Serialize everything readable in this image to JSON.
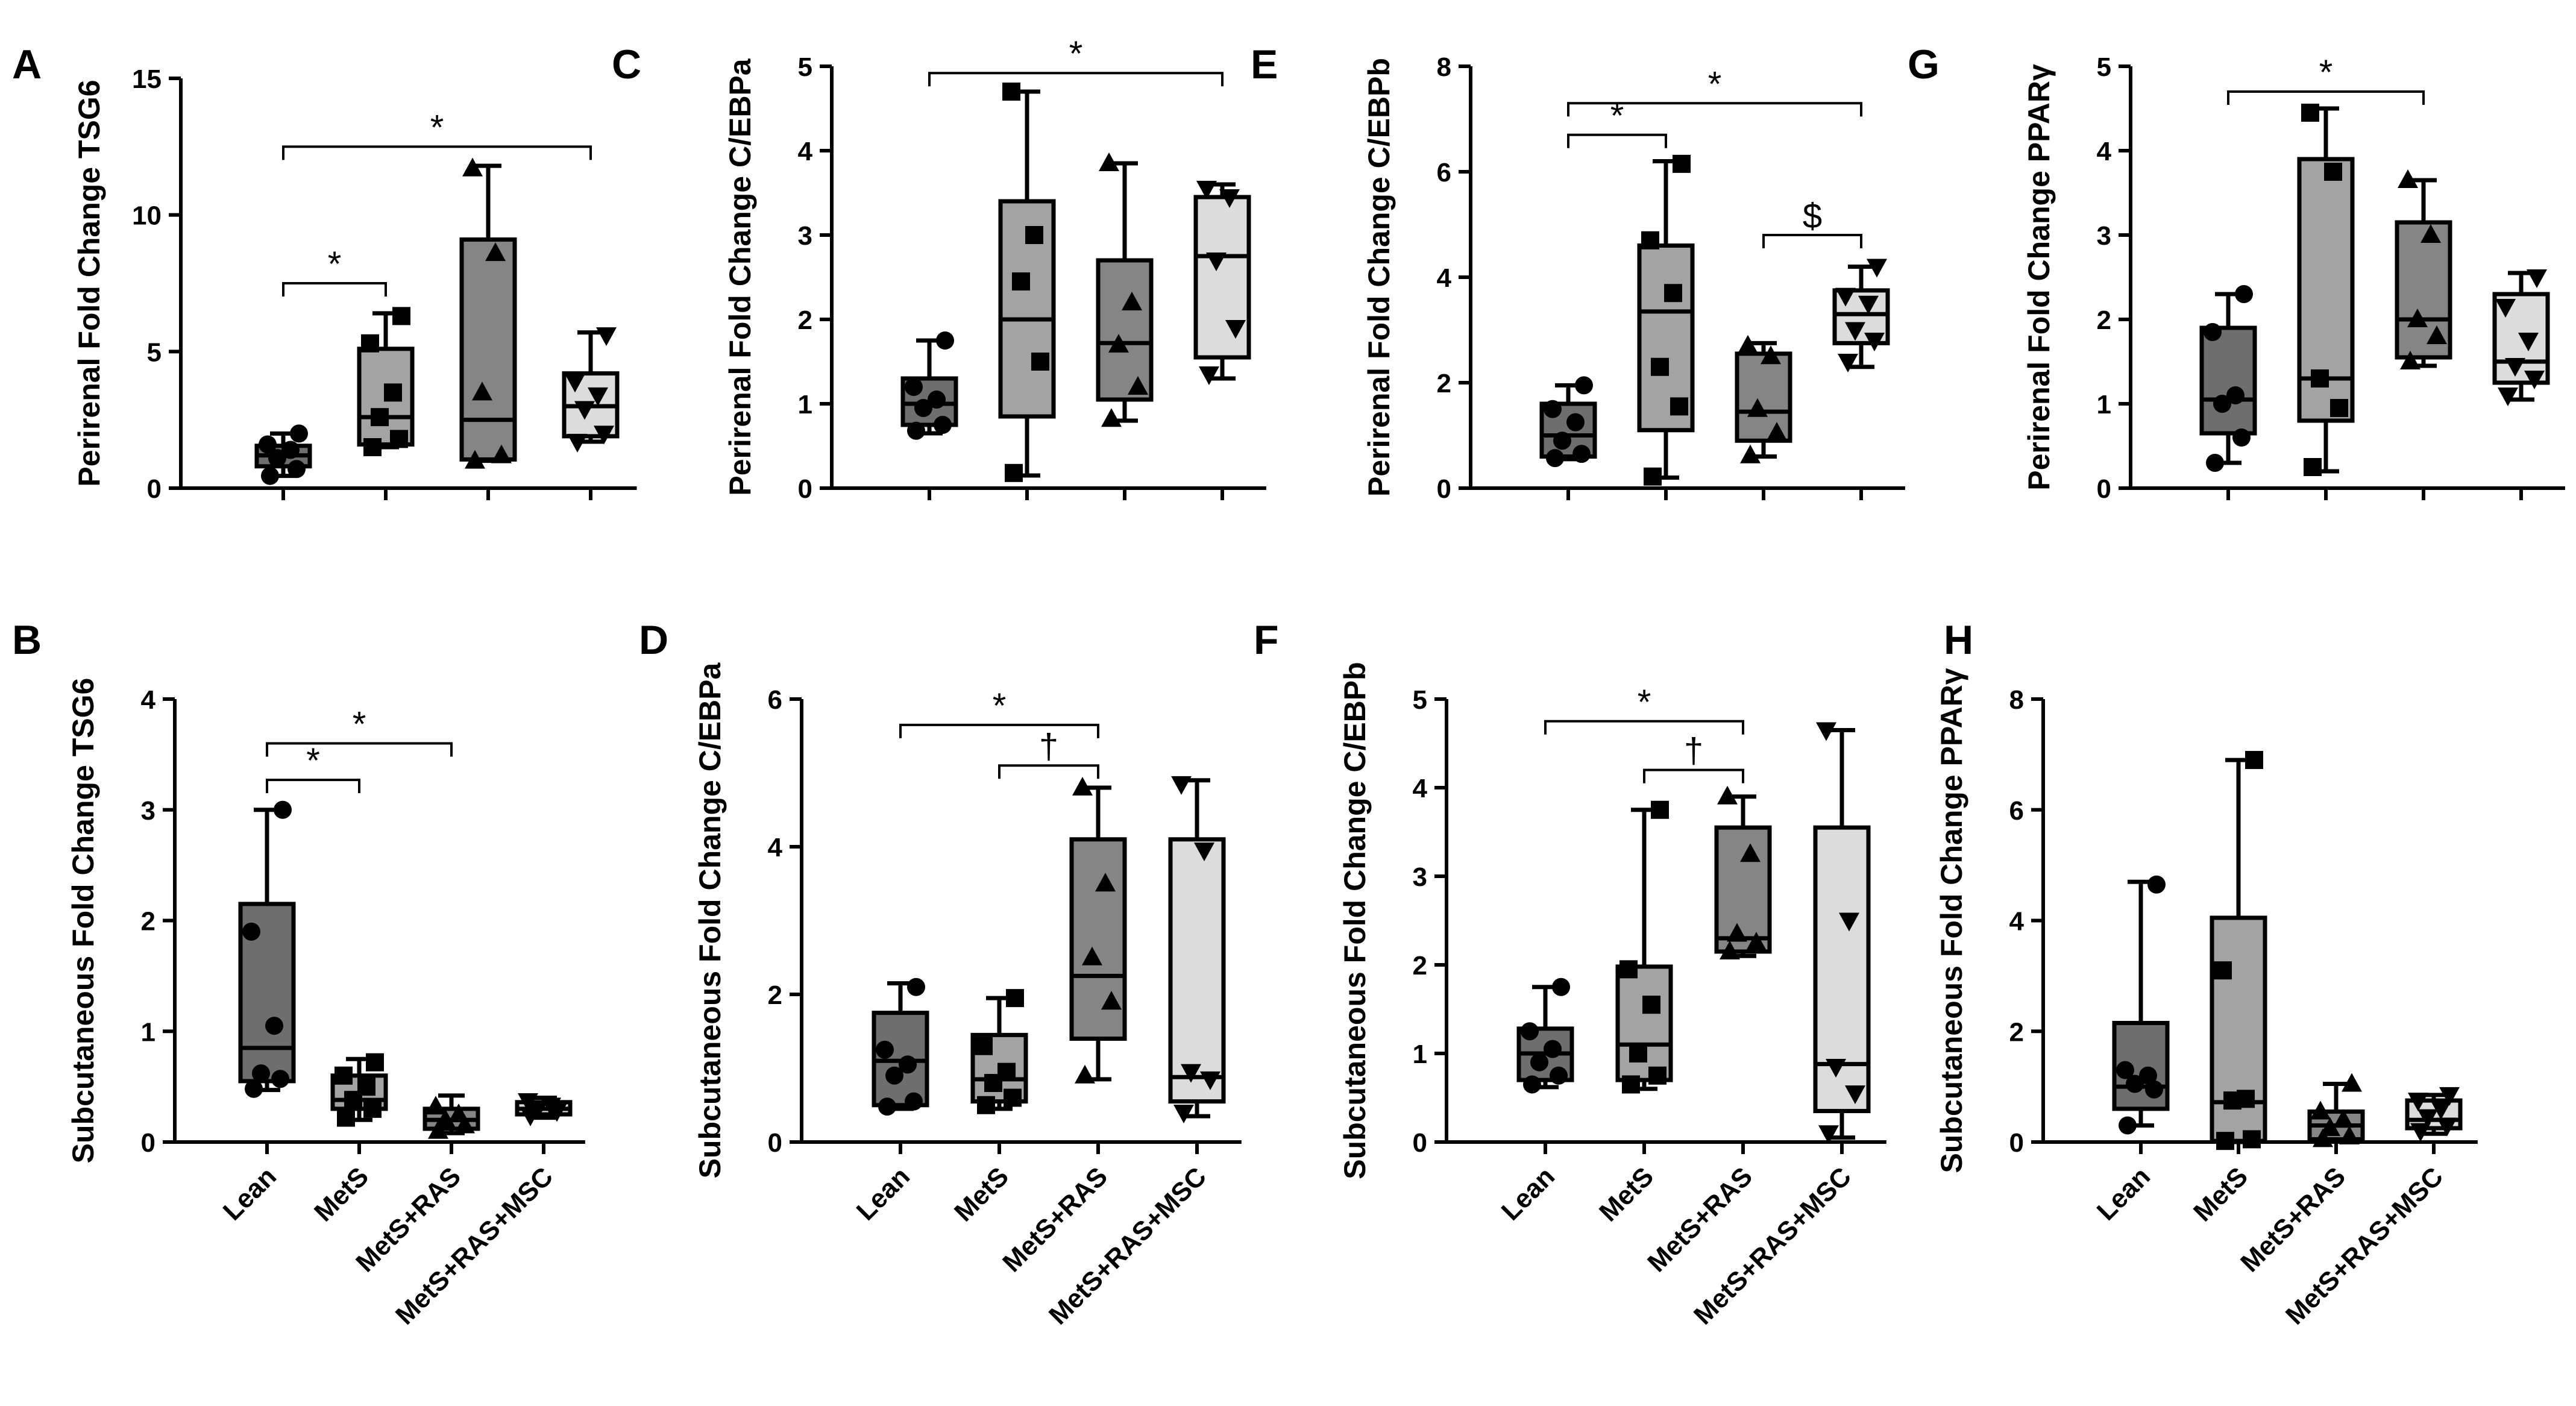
{
  "colors": {
    "Lean": "#6e6e6e",
    "MetS": "#a3a3a3",
    "MetS+RAS": "#858585",
    "MetS+RAS+MSC": "#dcdcdc",
    "ink": "#000000"
  },
  "chart_data": [
    {
      "panel": "A",
      "type": "box",
      "title": "",
      "xlabel": "",
      "ylabel": "Perirenal Fold Change TSG6",
      "ylim": [
        0,
        15
      ],
      "yticks": [
        0,
        5,
        10,
        15
      ],
      "categories": [
        "Lean",
        "MetS",
        "MetS+RAS",
        "MetS+RAS+MSC"
      ],
      "show_category_labels": false,
      "groups": [
        {
          "name": "Lean",
          "marker": "circle",
          "min": 0.45,
          "q1": 0.8,
          "median": 1.2,
          "q3": 1.55,
          "max": 2.0,
          "points": [
            0.45,
            0.7,
            1.1,
            1.4,
            1.6,
            2.0
          ]
        },
        {
          "name": "MetS",
          "marker": "square",
          "min": 1.5,
          "q1": 1.6,
          "median": 2.6,
          "q3": 5.1,
          "max": 6.4,
          "points": [
            1.5,
            1.8,
            2.6,
            3.5,
            5.3,
            6.3
          ]
        },
        {
          "name": "MetS+RAS",
          "marker": "triangle-up",
          "min": 1.0,
          "q1": 1.05,
          "median": 2.5,
          "q3": 9.1,
          "max": 11.8,
          "points": [
            1.0,
            1.2,
            3.5,
            8.6,
            11.7
          ]
        },
        {
          "name": "MetS+RAS+MSC",
          "marker": "triangle-down",
          "min": 1.7,
          "q1": 1.9,
          "median": 3.0,
          "q3": 4.2,
          "max": 5.7,
          "points": [
            1.7,
            2.0,
            2.9,
            3.4,
            3.9,
            5.6
          ]
        }
      ],
      "brackets": [
        {
          "from": 0,
          "to": 1,
          "y": 7.5,
          "label": "*"
        },
        {
          "from": 0,
          "to": 3,
          "y": 12.5,
          "label": "*"
        }
      ]
    },
    {
      "panel": "B",
      "type": "box",
      "title": "",
      "xlabel": "",
      "ylabel": "Subcutaneous Fold Change TSG6",
      "ylim": [
        0,
        4
      ],
      "yticks": [
        0,
        1,
        2,
        3,
        4
      ],
      "categories": [
        "Lean",
        "MetS",
        "MetS+RAS",
        "MetS+RAS+MSC"
      ],
      "show_category_labels": true,
      "groups": [
        {
          "name": "Lean",
          "marker": "circle",
          "min": 0.47,
          "q1": 0.55,
          "median": 0.85,
          "q3": 2.15,
          "max": 3.0,
          "points": [
            0.48,
            0.57,
            0.62,
            1.05,
            1.9,
            3.0
          ]
        },
        {
          "name": "MetS",
          "marker": "square",
          "min": 0.2,
          "q1": 0.3,
          "median": 0.38,
          "q3": 0.6,
          "max": 0.75,
          "points": [
            0.22,
            0.3,
            0.38,
            0.5,
            0.6,
            0.72
          ]
        },
        {
          "name": "MetS+RAS",
          "marker": "triangle-up",
          "min": 0.08,
          "q1": 0.12,
          "median": 0.2,
          "q3": 0.3,
          "max": 0.42,
          "points": [
            0.1,
            0.15,
            0.2,
            0.25,
            0.32
          ]
        },
        {
          "name": "MetS+RAS+MSC",
          "marker": "triangle-down",
          "min": 0.22,
          "q1": 0.25,
          "median": 0.3,
          "q3": 0.36,
          "max": 0.4,
          "points": [
            0.24,
            0.28,
            0.3,
            0.33,
            0.37
          ]
        }
      ],
      "brackets": [
        {
          "from": 0,
          "to": 1,
          "y": 3.27,
          "label": "*"
        },
        {
          "from": 0,
          "to": 2,
          "y": 3.6,
          "label": "*"
        }
      ]
    },
    {
      "panel": "C",
      "type": "box",
      "title": "",
      "xlabel": "",
      "ylabel": "Perirenal Fold Change C/EBPa",
      "ylim": [
        0,
        5
      ],
      "yticks": [
        0,
        1,
        2,
        3,
        4,
        5
      ],
      "categories": [
        "Lean",
        "MetS",
        "MetS+RAS",
        "MetS+RAS+MSC"
      ],
      "show_category_labels": false,
      "groups": [
        {
          "name": "Lean",
          "marker": "circle",
          "min": 0.65,
          "q1": 0.75,
          "median": 1.0,
          "q3": 1.3,
          "max": 1.75,
          "points": [
            0.68,
            0.75,
            0.95,
            1.05,
            1.2,
            1.75
          ]
        },
        {
          "name": "MetS",
          "marker": "square",
          "min": 0.15,
          "q1": 0.85,
          "median": 2.0,
          "q3": 3.4,
          "max": 4.7,
          "points": [
            0.18,
            1.5,
            2.45,
            3.0,
            4.7
          ]
        },
        {
          "name": "MetS+RAS",
          "marker": "triangle-up",
          "min": 0.8,
          "q1": 1.05,
          "median": 1.72,
          "q3": 2.7,
          "max": 3.85,
          "points": [
            0.82,
            1.2,
            1.7,
            2.2,
            3.85
          ]
        },
        {
          "name": "MetS+RAS+MSC",
          "marker": "triangle-down",
          "min": 1.3,
          "q1": 1.55,
          "median": 2.75,
          "q3": 3.45,
          "max": 3.6,
          "points": [
            1.35,
            1.9,
            2.7,
            3.45,
            3.55
          ]
        }
      ],
      "brackets": [
        {
          "from": 0,
          "to": 3,
          "y": 4.92,
          "label": "*"
        }
      ]
    },
    {
      "panel": "D",
      "type": "box",
      "title": "",
      "xlabel": "",
      "ylabel": "Subcutaneous Fold Change C/EBPa",
      "ylim": [
        0,
        6
      ],
      "yticks": [
        0,
        2,
        4,
        6
      ],
      "categories": [
        "Lean",
        "MetS",
        "MetS+RAS",
        "MetS+RAS+MSC"
      ],
      "show_category_labels": true,
      "groups": [
        {
          "name": "Lean",
          "marker": "circle",
          "min": 0.45,
          "q1": 0.5,
          "median": 1.1,
          "q3": 1.75,
          "max": 2.15,
          "points": [
            0.48,
            0.55,
            0.9,
            1.05,
            1.25,
            2.1
          ]
        },
        {
          "name": "MetS",
          "marker": "square",
          "min": 0.45,
          "q1": 0.55,
          "median": 0.85,
          "q3": 1.45,
          "max": 1.95,
          "points": [
            0.5,
            0.6,
            0.8,
            0.95,
            1.3,
            1.95
          ]
        },
        {
          "name": "MetS+RAS",
          "marker": "triangle-up",
          "min": 0.85,
          "q1": 1.4,
          "median": 2.25,
          "q3": 4.1,
          "max": 4.8,
          "points": [
            0.9,
            1.9,
            2.5,
            3.5,
            4.8
          ]
        },
        {
          "name": "MetS+RAS+MSC",
          "marker": "triangle-down",
          "min": 0.35,
          "q1": 0.55,
          "median": 0.88,
          "q3": 4.1,
          "max": 4.9,
          "points": [
            0.4,
            0.85,
            0.95,
            3.95,
            4.85
          ]
        }
      ],
      "brackets": [
        {
          "from": 0,
          "to": 2,
          "y": 5.65,
          "label": "*"
        },
        {
          "from": 1,
          "to": 2,
          "y": 5.1,
          "label": "†"
        }
      ]
    },
    {
      "panel": "E",
      "type": "box",
      "title": "",
      "xlabel": "",
      "ylabel": "Perirenal Fold Change C/EBPb",
      "ylim": [
        0,
        8
      ],
      "yticks": [
        0,
        2,
        4,
        6,
        8
      ],
      "categories": [
        "Lean",
        "MetS",
        "MetS+RAS",
        "MetS+RAS+MSC"
      ],
      "show_category_labels": false,
      "groups": [
        {
          "name": "Lean",
          "marker": "circle",
          "min": 0.55,
          "q1": 0.6,
          "median": 1.0,
          "q3": 1.6,
          "max": 1.95,
          "points": [
            0.57,
            0.65,
            0.9,
            1.25,
            1.5,
            1.95
          ]
        },
        {
          "name": "MetS",
          "marker": "square",
          "min": 0.2,
          "q1": 1.1,
          "median": 3.35,
          "q3": 4.6,
          "max": 6.2,
          "points": [
            0.22,
            1.55,
            2.3,
            3.7,
            4.7,
            6.15
          ]
        },
        {
          "name": "MetS+RAS",
          "marker": "triangle-up",
          "min": 0.6,
          "q1": 0.9,
          "median": 1.45,
          "q3": 2.55,
          "max": 2.75,
          "points": [
            0.62,
            1.05,
            1.5,
            2.5,
            2.7
          ]
        },
        {
          "name": "MetS+RAS+MSC",
          "marker": "triangle-down",
          "min": 2.3,
          "q1": 2.75,
          "median": 3.3,
          "q3": 3.75,
          "max": 4.2,
          "points": [
            2.4,
            2.8,
            3.0,
            3.5,
            3.65,
            4.2
          ]
        }
      ],
      "brackets": [
        {
          "from": 0,
          "to": 1,
          "y": 6.7,
          "label": "*"
        },
        {
          "from": 0,
          "to": 3,
          "y": 7.3,
          "label": "*"
        },
        {
          "from": 2,
          "to": 3,
          "y": 4.8,
          "label": "$"
        }
      ]
    },
    {
      "panel": "F",
      "type": "box",
      "title": "",
      "xlabel": "",
      "ylabel": "Subcutaneous Fold Change C/EBPb",
      "ylim": [
        0,
        5
      ],
      "yticks": [
        0,
        1,
        2,
        3,
        4,
        5
      ],
      "categories": [
        "Lean",
        "MetS",
        "MetS+RAS",
        "MetS+RAS+MSC"
      ],
      "show_category_labels": true,
      "groups": [
        {
          "name": "Lean",
          "marker": "circle",
          "min": 0.62,
          "q1": 0.7,
          "median": 1.0,
          "q3": 1.28,
          "max": 1.75,
          "points": [
            0.65,
            0.75,
            0.9,
            1.05,
            1.25,
            1.75
          ]
        },
        {
          "name": "MetS",
          "marker": "square",
          "min": 0.6,
          "q1": 0.7,
          "median": 1.1,
          "q3": 1.98,
          "max": 3.75,
          "points": [
            0.65,
            0.75,
            1.0,
            1.55,
            1.95,
            3.75
          ]
        },
        {
          "name": "MetS+RAS",
          "marker": "triangle-up",
          "min": 2.1,
          "q1": 2.15,
          "median": 2.3,
          "q3": 3.55,
          "max": 3.9,
          "points": [
            2.15,
            2.25,
            2.35,
            3.25,
            3.9
          ]
        },
        {
          "name": "MetS+RAS+MSC",
          "marker": "triangle-down",
          "min": 0.05,
          "q1": 0.35,
          "median": 0.88,
          "q3": 3.55,
          "max": 4.65,
          "points": [
            0.1,
            0.55,
            0.85,
            2.5,
            4.65
          ]
        }
      ],
      "brackets": [
        {
          "from": 0,
          "to": 2,
          "y": 4.75,
          "label": "*"
        },
        {
          "from": 1,
          "to": 2,
          "y": 4.2,
          "label": "†"
        }
      ]
    },
    {
      "panel": "G",
      "type": "box",
      "title": "",
      "xlabel": "",
      "ylabel": "Perirenal Fold Change PPARγ",
      "ylim": [
        0,
        5
      ],
      "yticks": [
        0,
        1,
        2,
        3,
        4,
        5
      ],
      "categories": [
        "Lean",
        "MetS",
        "MetS+RAS",
        "MetS+RAS+MSC"
      ],
      "show_category_labels": false,
      "groups": [
        {
          "name": "Lean",
          "marker": "circle",
          "min": 0.3,
          "q1": 0.65,
          "median": 1.05,
          "q3": 1.9,
          "max": 2.3,
          "points": [
            0.3,
            0.6,
            1.0,
            1.1,
            1.85,
            2.3
          ]
        },
        {
          "name": "MetS",
          "marker": "square",
          "min": 0.2,
          "q1": 0.8,
          "median": 1.3,
          "q3": 3.9,
          "max": 4.5,
          "points": [
            0.25,
            0.95,
            1.3,
            3.75,
            4.45
          ]
        },
        {
          "name": "MetS+RAS",
          "marker": "triangle-up",
          "min": 1.45,
          "q1": 1.55,
          "median": 2.0,
          "q3": 3.15,
          "max": 3.65,
          "points": [
            1.5,
            1.8,
            2.0,
            3.0,
            3.65
          ]
        },
        {
          "name": "MetS+RAS+MSC",
          "marker": "triangle-down",
          "min": 1.05,
          "q1": 1.25,
          "median": 1.5,
          "q3": 2.3,
          "max": 2.55,
          "points": [
            1.1,
            1.3,
            1.45,
            1.75,
            2.15,
            2.5
          ]
        }
      ],
      "brackets": [
        {
          "from": 0,
          "to": 2,
          "y": 4.7,
          "label": "*"
        }
      ]
    },
    {
      "panel": "H",
      "type": "box",
      "title": "",
      "xlabel": "",
      "ylabel": "Subcutaneous Fold Change PPARγ",
      "ylim": [
        0,
        8
      ],
      "yticks": [
        0,
        2,
        4,
        6,
        8
      ],
      "categories": [
        "Lean",
        "MetS",
        "MetS+RAS",
        "MetS+RAS+MSC"
      ],
      "show_category_labels": true,
      "groups": [
        {
          "name": "Lean",
          "marker": "circle",
          "min": 0.3,
          "q1": 0.6,
          "median": 1.0,
          "q3": 2.15,
          "max": 4.7,
          "points": [
            0.3,
            0.95,
            1.05,
            1.2,
            1.3,
            4.65
          ]
        },
        {
          "name": "MetS",
          "marker": "square",
          "min": 0.0,
          "q1": 0.02,
          "median": 0.72,
          "q3": 4.05,
          "max": 6.9,
          "points": [
            0.02,
            0.05,
            0.75,
            0.78,
            3.1,
            6.9
          ]
        },
        {
          "name": "MetS+RAS",
          "marker": "triangle-up",
          "min": 0.02,
          "q1": 0.05,
          "median": 0.3,
          "q3": 0.55,
          "max": 1.05,
          "points": [
            0.05,
            0.1,
            0.25,
            0.4,
            0.55,
            1.05
          ]
        },
        {
          "name": "MetS+RAS+MSC",
          "marker": "triangle-down",
          "min": 0.15,
          "q1": 0.25,
          "median": 0.4,
          "q3": 0.75,
          "max": 0.85,
          "points": [
            0.2,
            0.3,
            0.45,
            0.6,
            0.75,
            0.85
          ]
        }
      ],
      "brackets": []
    }
  ]
}
